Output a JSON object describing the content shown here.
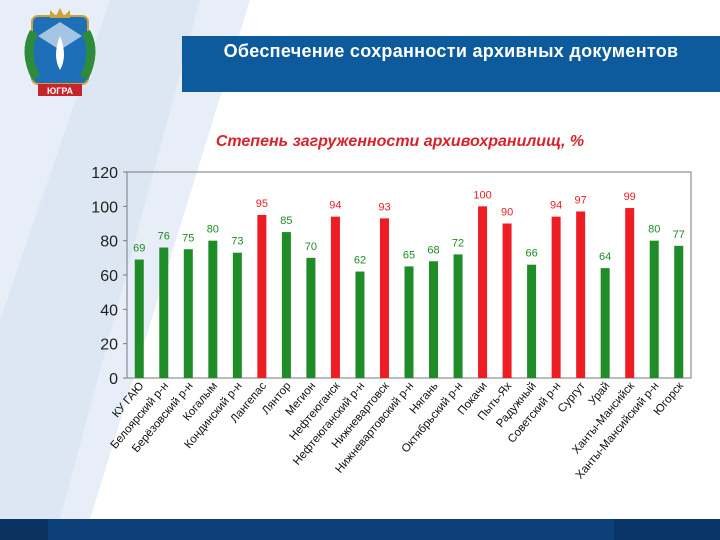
{
  "header": {
    "title": "Обеспечение сохранности архивных документов"
  },
  "emblem": {
    "caption": "ЮГРА"
  },
  "colors": {
    "header_bg": "#0d5a9c",
    "bar_green": "#1e8c27",
    "bar_red": "#ee1d24",
    "title_red": "#d9232b",
    "footer": "#0d3f78"
  },
  "chart_data": {
    "type": "bar",
    "title": "Степень загруженности архивохранилищ, %",
    "xlabel": "",
    "ylabel": "",
    "ylim": [
      0,
      120
    ],
    "yticks": [
      0,
      20,
      40,
      60,
      80,
      100,
      120
    ],
    "grid": false,
    "categories": [
      "КУ ГАЮ",
      "Белоярский р-н",
      "Берёзовский р-н",
      "Когалым",
      "Кондинский р-н",
      "Лангепас",
      "Лянтор",
      "Мегион",
      "Нефтеюганск",
      "Нефтеюганский р-н",
      "Нижневартовск",
      "Нижневартовский р-н",
      "Нягань",
      "Октябрьский р-н",
      "Покачи",
      "Пыть-Ях",
      "Радужный",
      "Советский р-н",
      "Сургут",
      "Урай",
      "Ханты-Мансийск",
      "Ханты-Мансийский р-н",
      "Югорск"
    ],
    "values": [
      69,
      76,
      75,
      80,
      73,
      95,
      85,
      70,
      94,
      62,
      93,
      65,
      68,
      72,
      100,
      90,
      66,
      94,
      97,
      64,
      99,
      80,
      77
    ],
    "bar_colors": [
      "green",
      "green",
      "green",
      "green",
      "green",
      "red",
      "green",
      "green",
      "red",
      "green",
      "red",
      "green",
      "green",
      "green",
      "red",
      "red",
      "green",
      "red",
      "red",
      "green",
      "red",
      "green",
      "green"
    ]
  }
}
